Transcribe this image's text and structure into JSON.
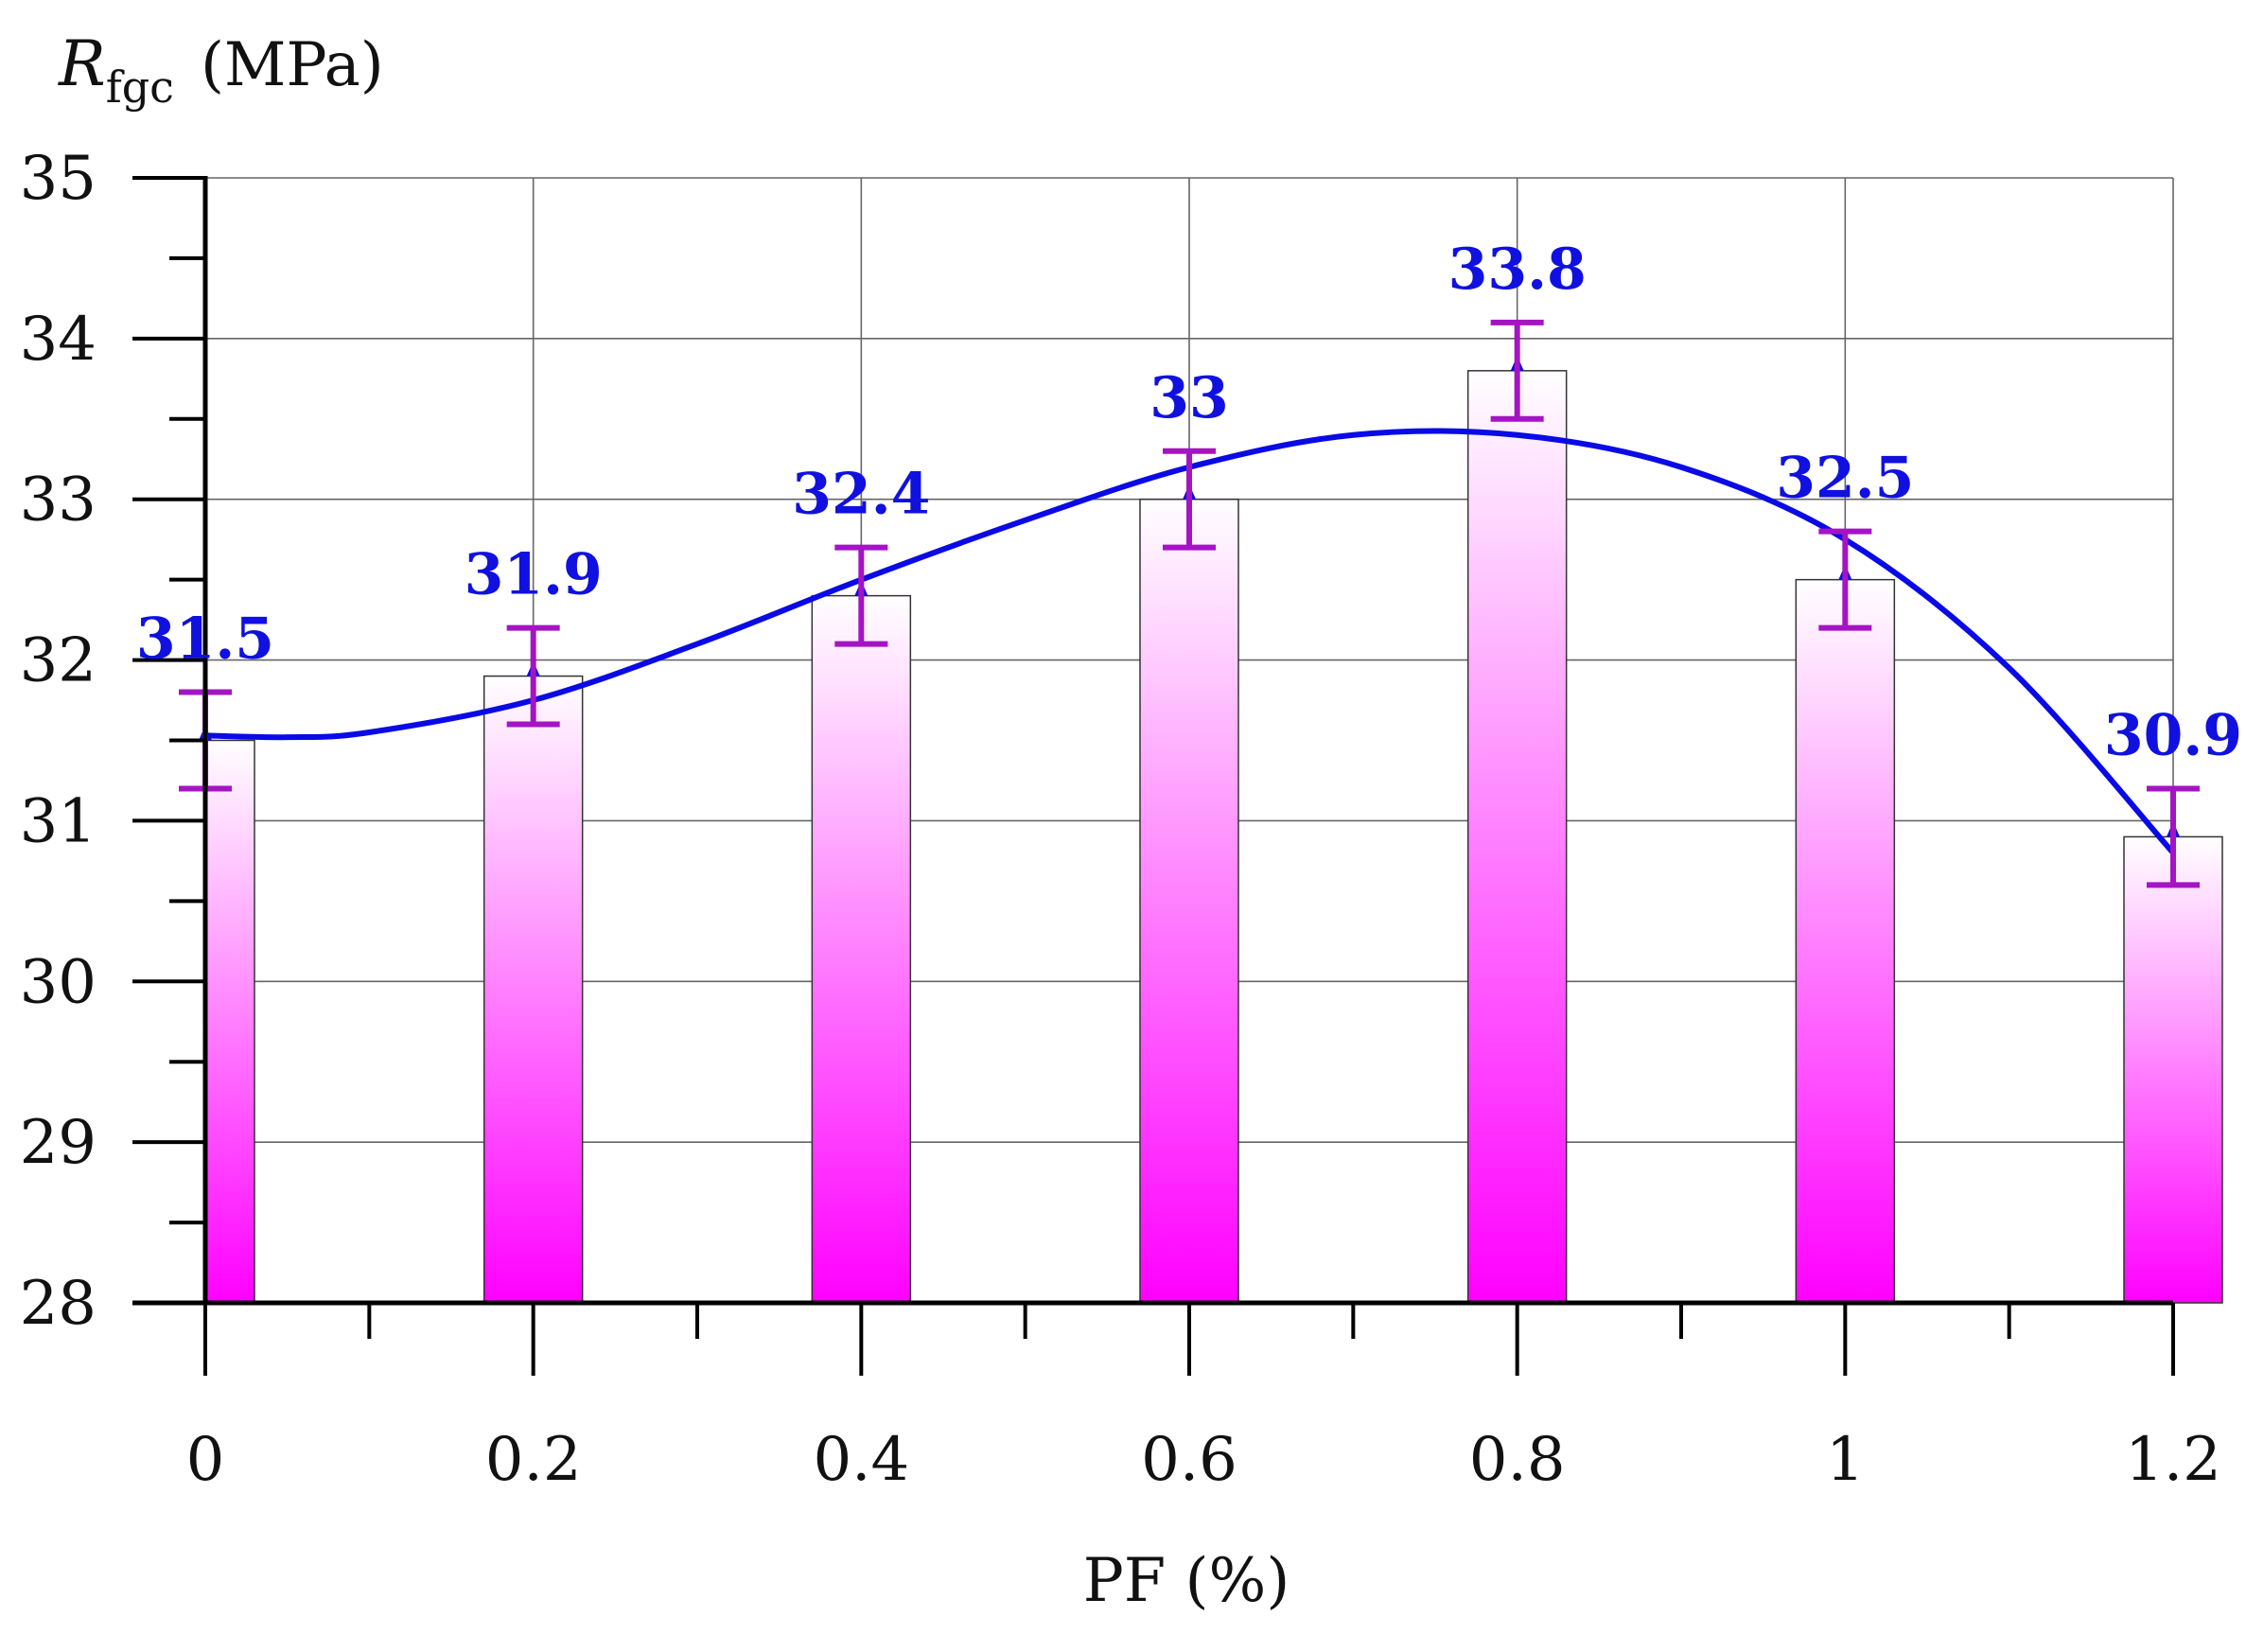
{
  "chart_data": {
    "type": "bar",
    "x": [
      0,
      0.2,
      0.4,
      0.6,
      0.8,
      1,
      1.2
    ],
    "x_tick_labels": [
      "0",
      "0.2",
      "0.4",
      "0.6",
      "0.8",
      "1",
      "1.2"
    ],
    "values": [
      31.5,
      31.9,
      32.4,
      33,
      33.8,
      32.5,
      30.9
    ],
    "value_labels": [
      "31.5",
      "31.9",
      "32.4",
      "33",
      "33.8",
      "32.5",
      "30.9"
    ],
    "error": [
      0.3,
      0.3,
      0.3,
      0.3,
      0.3,
      0.3,
      0.3
    ],
    "trend_line": {
      "type": "polynomial-fit",
      "x": [
        0,
        0.05,
        0.1,
        0.2,
        0.3,
        0.4,
        0.5,
        0.6,
        0.7,
        0.8,
        0.9,
        1.0,
        1.1,
        1.2
      ],
      "y": [
        31.53,
        31.52,
        31.55,
        31.75,
        32.1,
        32.5,
        32.87,
        33.2,
        33.4,
        33.4,
        33.2,
        32.75,
        31.95,
        30.8
      ]
    },
    "ylabel_main": "R",
    "ylabel_sub": "fgc",
    "ylabel_unit": "(MPa)",
    "xlabel": "PF  (%)",
    "ylim": [
      28,
      35
    ],
    "y_ticks": [
      "28",
      "29",
      "30",
      "31",
      "32",
      "33",
      "34",
      "35"
    ],
    "xlim": [
      0,
      1.2
    ],
    "grid": true,
    "colors": {
      "bar_top": "#ffffff",
      "bar_bottom": "#ff00ff",
      "trend": "#0a0ae6",
      "error_bar": "#a414c4",
      "data_label": "#1010e0",
      "grid": "#666666",
      "axis": "#000000"
    }
  }
}
